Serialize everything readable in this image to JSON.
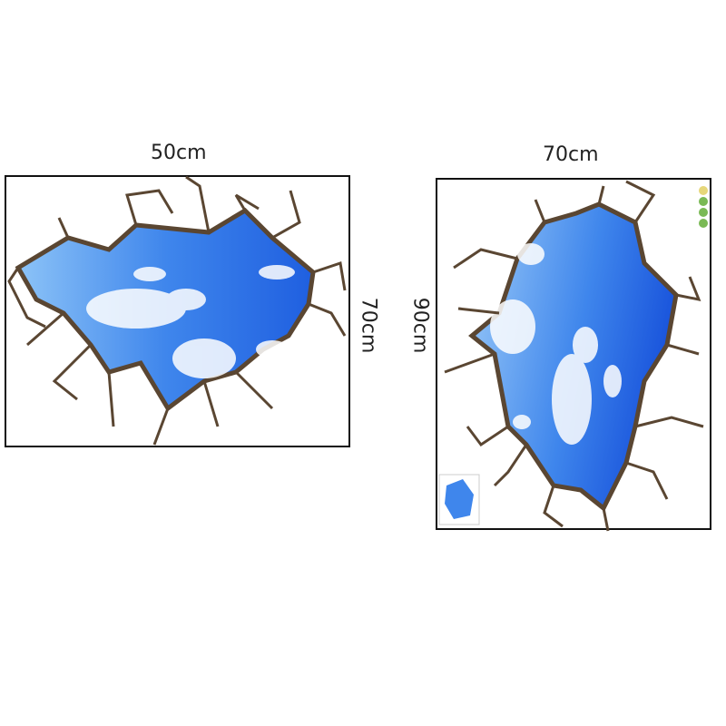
{
  "left_panel": {
    "width_label": "50cm",
    "height_label": "70cm"
  },
  "right_panel": {
    "width_label": "70cm",
    "height_label": "90cm"
  },
  "colors": {
    "sky_light": "#7fb8f5",
    "sky_dark": "#1f5fe0",
    "crack": "#5a4632",
    "frame": "#111111"
  }
}
